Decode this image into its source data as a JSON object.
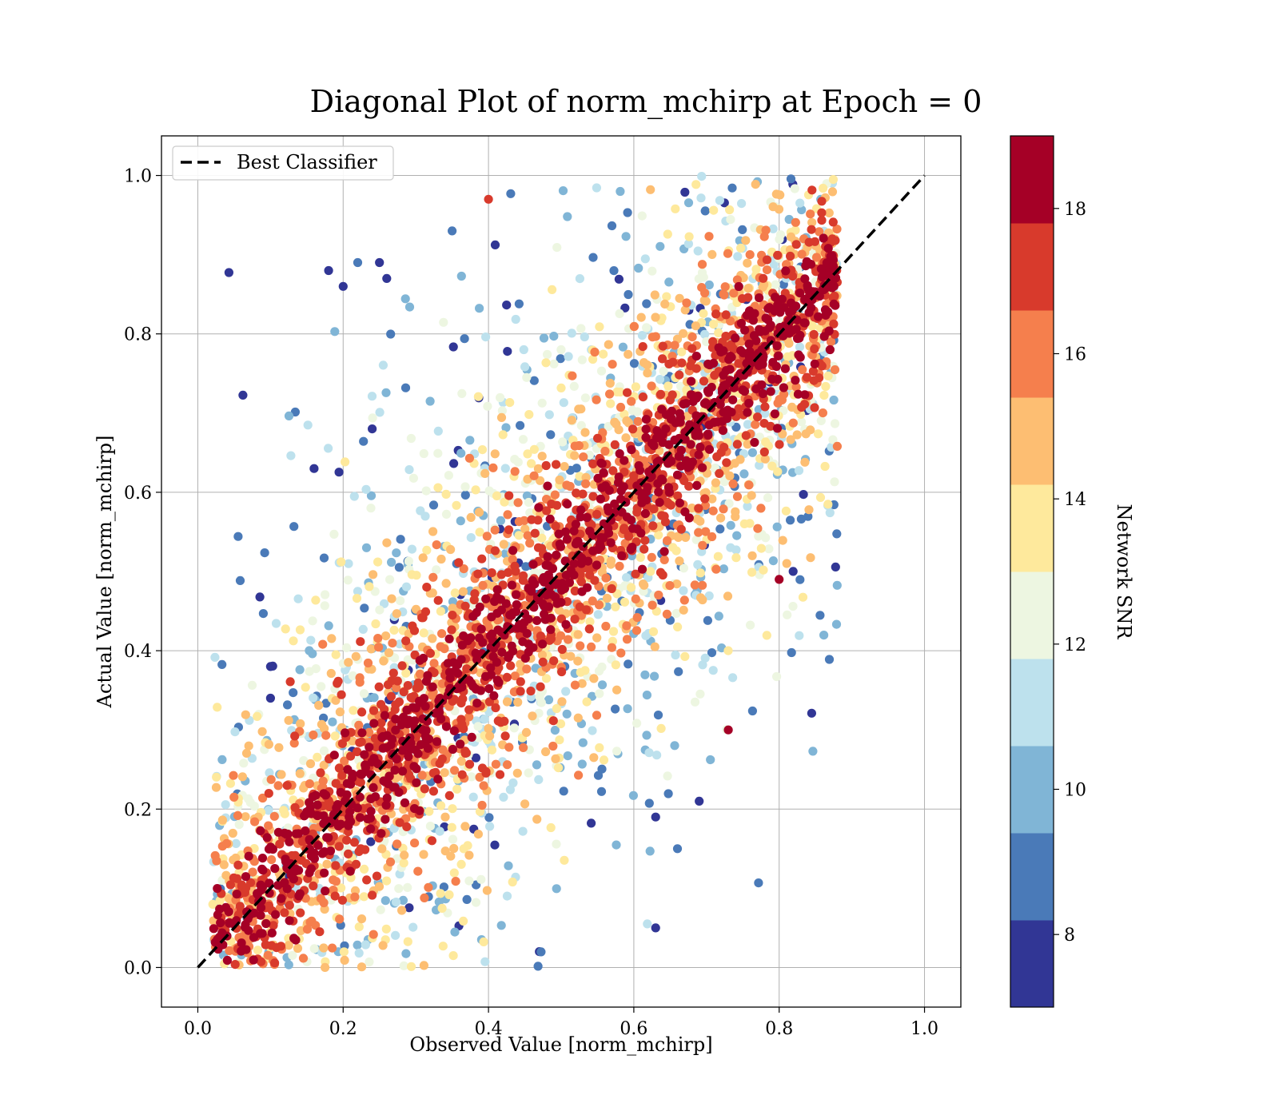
{
  "chart_data": {
    "type": "scatter",
    "title": "Diagonal Plot of norm_mchirp at Epoch = 0",
    "xlabel": "Observed Value [norm_mchirp]",
    "ylabel": "Actual Value [norm_mchirp]",
    "xlim": [
      -0.05,
      1.05
    ],
    "ylim": [
      -0.05,
      1.05
    ],
    "x_ticks": [
      "0.0",
      "0.2",
      "0.4",
      "0.6",
      "0.8",
      "1.0"
    ],
    "y_ticks": [
      "0.0",
      "0.2",
      "0.4",
      "0.6",
      "0.8",
      "1.0"
    ],
    "grid": true,
    "legend": {
      "placement": "upper-left",
      "entries": [
        "Best Classifier"
      ]
    },
    "reference_line": {
      "name": "Best Classifier",
      "x": [
        0.0,
        1.0
      ],
      "y": [
        0.0,
        1.0
      ],
      "style": "dashed",
      "color": "#000000"
    },
    "color_encoding": {
      "label": "Network SNR",
      "range": [
        7,
        19
      ],
      "ticks": [
        "8",
        "10",
        "12",
        "14",
        "16",
        "18"
      ],
      "colors": [
        "#313695",
        "#4a7ab8",
        "#80b5d6",
        "#bde1ed",
        "#edf6e1",
        "#fee99c",
        "#fdbe72",
        "#f57f4d",
        "#d83a2c",
        "#a50026"
      ]
    },
    "scatter_summary": {
      "x_range": [
        0.02,
        0.88
      ],
      "y_range": [
        0.0,
        1.0
      ],
      "trend": "points cluster along the diagonal; high SNR (dark red) near the diagonal, lower SNR (blue) scattered farther away",
      "sample_points": [
        [
          0.18,
          0.88,
          7.5
        ],
        [
          0.2,
          0.86,
          7.5
        ],
        [
          0.25,
          0.89,
          8
        ],
        [
          0.26,
          0.87,
          7.5
        ],
        [
          0.16,
          0.63,
          7.5
        ],
        [
          0.24,
          0.68,
          7.5
        ],
        [
          0.1,
          0.34,
          7.5
        ],
        [
          0.1,
          0.38,
          7.5
        ],
        [
          0.63,
          0.05,
          7.5
        ],
        [
          0.47,
          0.02,
          7.5
        ],
        [
          0.63,
          0.19,
          8
        ],
        [
          0.69,
          0.21,
          7.5
        ],
        [
          0.73,
          0.3,
          18.5
        ],
        [
          0.87,
          0.78,
          18.5
        ],
        [
          0.8,
          0.49,
          18.5
        ],
        [
          0.4,
          0.97,
          17
        ],
        [
          0.22,
          0.89,
          9
        ],
        [
          0.35,
          0.93,
          9
        ],
        [
          0.66,
          0.15,
          8.5
        ]
      ]
    }
  }
}
